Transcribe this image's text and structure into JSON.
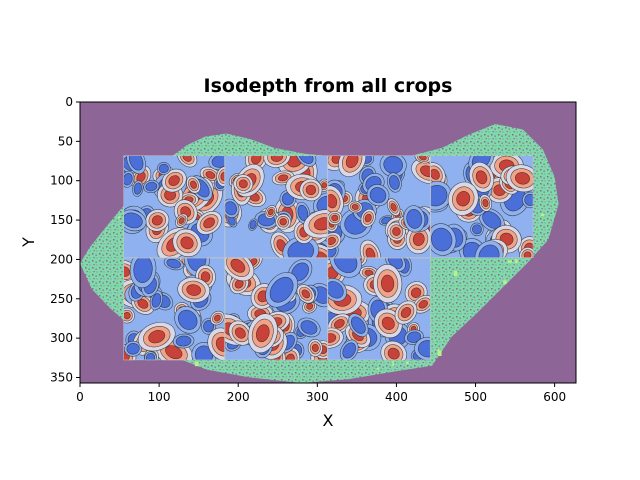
{
  "chart_data": {
    "type": "heatmap",
    "title": "Isodepth from all crops",
    "xlabel": "X",
    "ylabel": "Y",
    "xlim": [
      0,
      627
    ],
    "ylim": [
      357,
      0
    ],
    "y_inverted": true,
    "x_ticks": [
      0,
      100,
      200,
      300,
      400,
      500,
      600
    ],
    "y_ticks": [
      0,
      50,
      100,
      150,
      200,
      250,
      300,
      350
    ],
    "grid": false,
    "legend": "none",
    "colormap": "coolwarm contours over a purple background with green speckled tissue mask",
    "colors": {
      "background": "#8d6597",
      "tissue_mask": "#7fd9a8",
      "tissue_highlight": "#b9f08a",
      "low": "#4b6fd9",
      "mid_low": "#8fb1f0",
      "mid": "#d8d8e6",
      "mid_high": "#f2a387",
      "high": "#c9423a"
    },
    "tissue_outline": [
      [
        0,
        205
      ],
      [
        12,
        185
      ],
      [
        28,
        165
      ],
      [
        48,
        140
      ],
      [
        68,
        118
      ],
      [
        92,
        96
      ],
      [
        112,
        72
      ],
      [
        135,
        55
      ],
      [
        158,
        44
      ],
      [
        185,
        40
      ],
      [
        215,
        47
      ],
      [
        245,
        58
      ],
      [
        285,
        66
      ],
      [
        330,
        70
      ],
      [
        380,
        72
      ],
      [
        420,
        68
      ],
      [
        458,
        58
      ],
      [
        490,
        42
      ],
      [
        525,
        28
      ],
      [
        560,
        35
      ],
      [
        585,
        60
      ],
      [
        600,
        95
      ],
      [
        605,
        130
      ],
      [
        592,
        175
      ],
      [
        565,
        205
      ],
      [
        540,
        230
      ],
      [
        500,
        270
      ],
      [
        470,
        298
      ],
      [
        445,
        335
      ],
      [
        400,
        342
      ],
      [
        340,
        352
      ],
      [
        280,
        357
      ],
      [
        215,
        350
      ],
      [
        160,
        340
      ],
      [
        110,
        320
      ],
      [
        70,
        290
      ],
      [
        38,
        262
      ],
      [
        15,
        238
      ]
    ],
    "crop_tiles": [
      {
        "x": [
          55,
          183
        ],
        "y": [
          68,
          198
        ]
      },
      {
        "x": [
          183,
          313
        ],
        "y": [
          68,
          198
        ]
      },
      {
        "x": [
          313,
          443
        ],
        "y": [
          68,
          198
        ]
      },
      {
        "x": [
          443,
          573
        ],
        "y": [
          68,
          198
        ]
      },
      {
        "x": [
          55,
          183
        ],
        "y": [
          198,
          328
        ]
      },
      {
        "x": [
          183,
          313
        ],
        "y": [
          198,
          328
        ]
      },
      {
        "x": [
          313,
          443
        ],
        "y": [
          198,
          328
        ]
      }
    ]
  }
}
